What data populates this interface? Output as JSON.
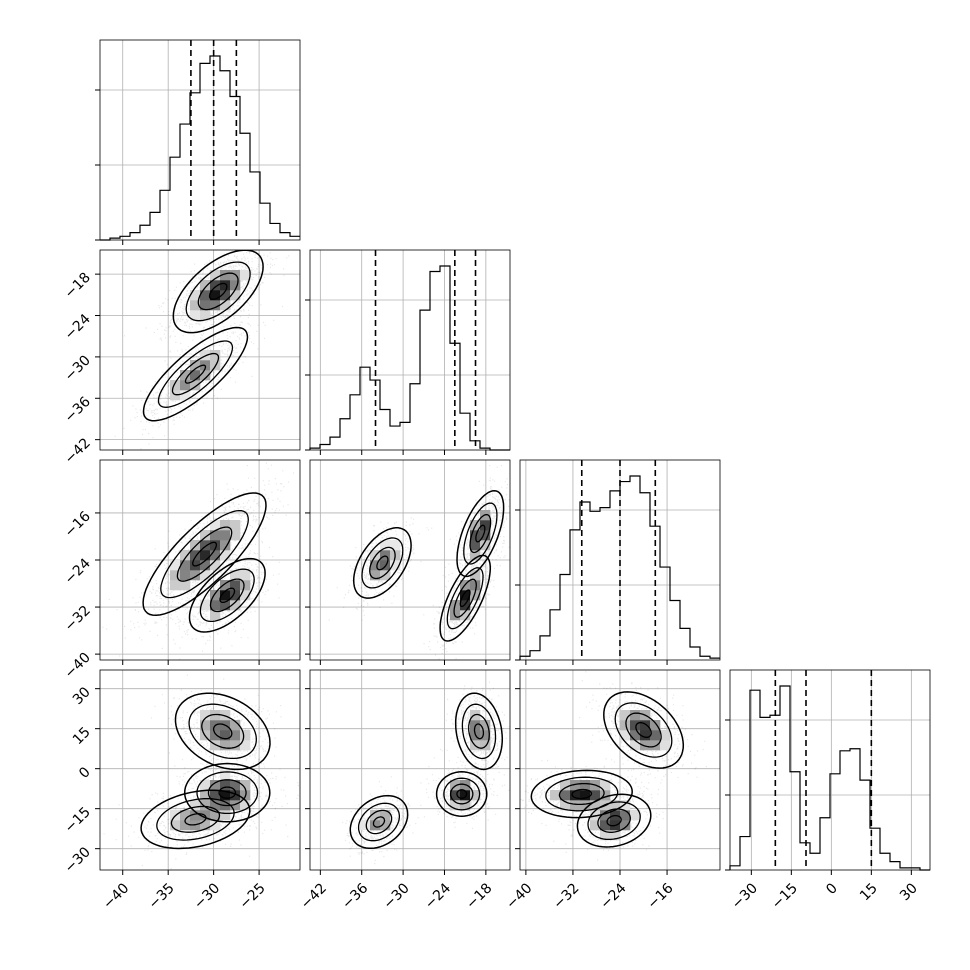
{
  "chart_data": {
    "type": "corner",
    "description_of_quantiles": "dashed lines mark 16th, 50th and 84th percentiles",
    "parameters": [
      {
        "id": "p1",
        "range": [
          -42.5,
          -20.5
        ],
        "ticks": [
          -40,
          -35,
          -30,
          -25
        ],
        "tick_labels": [
          "−40",
          "−35",
          "−30",
          "−25"
        ],
        "quantiles": [
          -32.5,
          -30.0,
          -27.5
        ],
        "histogram": {
          "edges_start": -42.5,
          "bin_width": 1.1,
          "counts": [
            0,
            1,
            2,
            4,
            8,
            15,
            27,
            45,
            63,
            80,
            96,
            100,
            92,
            78,
            58,
            37,
            20,
            9,
            4,
            2
          ]
        }
      },
      {
        "id": "p2",
        "range": [
          -43.5,
          -14.5
        ],
        "ticks": [
          -42,
          -36,
          -30,
          -24,
          -18
        ],
        "tick_labels": [
          "−42",
          "−36",
          "−30",
          "−24",
          "−18"
        ],
        "quantiles": [
          -34.0,
          -22.5,
          -19.5
        ],
        "histogram": {
          "edges_start": -43.5,
          "bin_width": 1.45,
          "counts": [
            1,
            3,
            7,
            17,
            30,
            45,
            38,
            22,
            13,
            15,
            36,
            76,
            97,
            100,
            58,
            20,
            5,
            1,
            0,
            0
          ]
        }
      },
      {
        "id": "p3",
        "range": [
          -41.0,
          -7.0
        ],
        "ticks": [
          -40,
          -32,
          -24,
          -16
        ],
        "tick_labels": [
          "−40",
          "−32",
          "−24",
          "−16"
        ],
        "quantiles": [
          -30.5,
          -24.0,
          -18.0
        ],
        "histogram": {
          "edges_start": -41.0,
          "bin_width": 1.7,
          "counts": [
            2,
            5,
            13,
            27,
            46,
            70,
            85,
            80,
            82,
            91,
            96,
            99,
            90,
            72,
            50,
            32,
            17,
            7,
            2,
            1
          ]
        }
      },
      {
        "id": "p4",
        "range": [
          -38.0,
          37.0
        ],
        "ticks": [
          -30,
          -15,
          0,
          15,
          30
        ],
        "tick_labels": [
          "−30",
          "−15",
          "0",
          "15",
          "30"
        ],
        "quantiles": [
          -21.0,
          -9.5,
          15.0
        ],
        "histogram": {
          "edges_start": -38.0,
          "bin_width": 3.75,
          "counts": [
            2,
            16,
            86,
            73,
            74,
            88,
            47,
            13,
            8,
            25,
            46,
            57,
            58,
            43,
            20,
            8,
            4,
            1,
            1,
            0
          ]
        }
      }
    ],
    "joint_panels": [
      {
        "row": 1,
        "col": 0,
        "clusters": [
          {
            "mean": [
              -29.5,
              -20.5
            ],
            "sd": [
              1.9,
              2.3
            ],
            "rho": 0.6,
            "weight": 0.6
          },
          {
            "mean": [
              -32.0,
              -32.5
            ],
            "sd": [
              2.2,
              2.6
            ],
            "rho": 0.8,
            "weight": 0.4
          }
        ]
      },
      {
        "row": 2,
        "col": 0,
        "clusters": [
          {
            "mean": [
              -31.0,
              -23.0
            ],
            "sd": [
              2.6,
              4.0
            ],
            "rho": 0.8,
            "weight": 0.65
          },
          {
            "mean": [
              -28.5,
              -30.0
            ],
            "sd": [
              1.6,
              2.4
            ],
            "rho": 0.6,
            "weight": 0.35
          }
        ]
      },
      {
        "row": 2,
        "col": 1,
        "clusters": [
          {
            "mean": [
              -33.0,
              -24.5
            ],
            "sd": [
              1.6,
              2.3
            ],
            "rho": 0.5,
            "weight": 0.3
          },
          {
            "mean": [
              -18.8,
              -19.5
            ],
            "sd": [
              1.3,
              2.8
            ],
            "rho": 0.6,
            "weight": 0.35
          },
          {
            "mean": [
              -21.0,
              -30.5
            ],
            "sd": [
              1.4,
              2.8
            ],
            "rho": 0.7,
            "weight": 0.35
          }
        ]
      },
      {
        "row": 3,
        "col": 0,
        "clusters": [
          {
            "mean": [
              -29.0,
              14.0
            ],
            "sd": [
              2.0,
              5.5
            ],
            "rho": -0.3,
            "weight": 0.38
          },
          {
            "mean": [
              -28.5,
              -9.0
            ],
            "sd": [
              1.8,
              4.2
            ],
            "rho": 0.0,
            "weight": 0.35
          },
          {
            "mean": [
              -32.0,
              -19.0
            ],
            "sd": [
              2.3,
              4.2
            ],
            "rho": 0.3,
            "weight": 0.27
          }
        ]
      },
      {
        "row": 3,
        "col": 1,
        "clusters": [
          {
            "mean": [
              -19.0,
              14.0
            ],
            "sd": [
              1.3,
              5.5
            ],
            "rho": -0.2,
            "weight": 0.38
          },
          {
            "mean": [
              -21.5,
              -9.5
            ],
            "sd": [
              1.4,
              3.2
            ],
            "rho": 0.0,
            "weight": 0.35
          },
          {
            "mean": [
              -33.5,
              -20.0
            ],
            "sd": [
              1.6,
              3.8
            ],
            "rho": 0.3,
            "weight": 0.27
          }
        ]
      },
      {
        "row": 3,
        "col": 2,
        "clusters": [
          {
            "mean": [
              -20.0,
              14.5
            ],
            "sd": [
              2.6,
              5.5
            ],
            "rho": -0.4,
            "weight": 0.38
          },
          {
            "mean": [
              -30.5,
              -9.5
            ],
            "sd": [
              3.3,
              3.4
            ],
            "rho": 0.1,
            "weight": 0.35
          },
          {
            "mean": [
              -25.0,
              -19.5
            ],
            "sd": [
              2.4,
              3.8
            ],
            "rho": 0.2,
            "weight": 0.27
          }
        ]
      }
    ],
    "colors": {
      "line": "#000000",
      "grid": "#b0b0b0",
      "density": "#000000"
    },
    "grid": true
  }
}
